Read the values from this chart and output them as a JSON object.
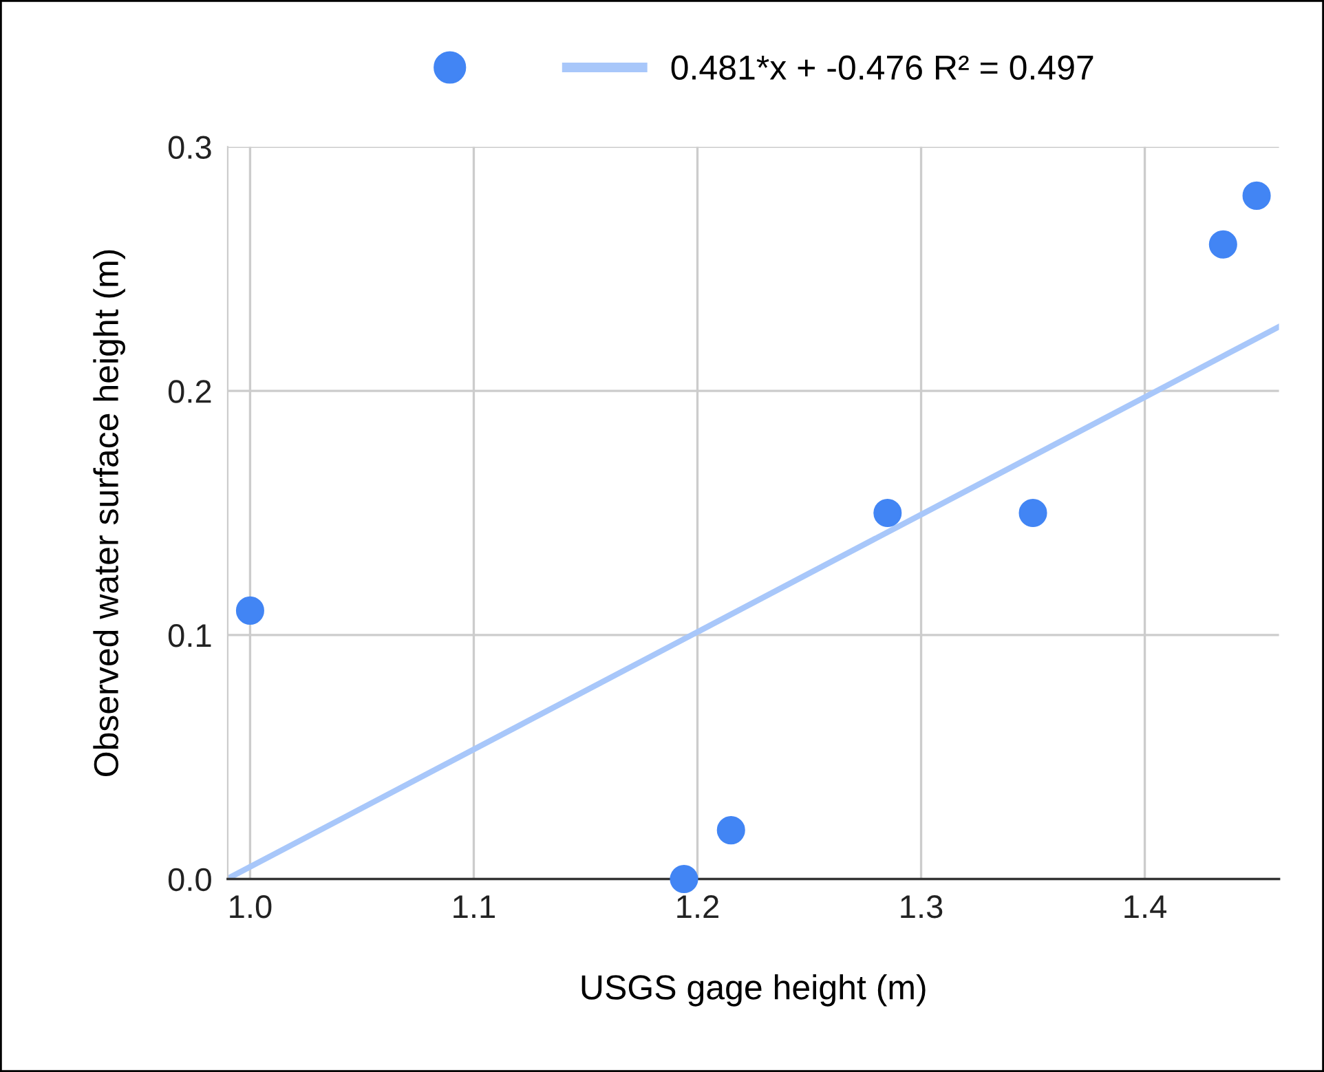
{
  "chart_data": {
    "type": "scatter",
    "xlabel": "USGS gage height (m)",
    "ylabel": "Observed water surface height (m)",
    "series": [
      {
        "marker": "circle",
        "color": "#4285f4",
        "x": [
          1.0,
          1.194,
          1.215,
          1.285,
          1.35,
          1.435,
          1.45
        ],
        "values": [
          0.11,
          0.0,
          0.02,
          0.15,
          0.15,
          0.26,
          0.28
        ]
      },
      {
        "type": "line",
        "name": "0.481*x + -0.476 R² = 0.497",
        "color": "#a8c7fa",
        "x": [
          0.99,
          1.46
        ],
        "values": [
          0.0002,
          0.2263
        ]
      }
    ],
    "xlim": [
      0.99,
      1.46
    ],
    "xticks": [
      {
        "value": 1.0,
        "label": "1.0"
      },
      1.1,
      1.2,
      1.3,
      1.4
    ],
    "ylim": [
      0,
      0.3
    ],
    "yticks": [
      {
        "value": 0,
        "label": "0.0"
      },
      0.1,
      0.2,
      0.3
    ],
    "grid": true,
    "legend": "top"
  }
}
